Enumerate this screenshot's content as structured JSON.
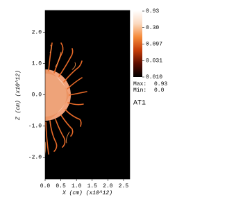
{
  "chart_data": {
    "type": "pseudocolor",
    "x_label": "X (cm) (x10^12)",
    "y_label": "Z (cm) (x10^12)",
    "xlim": [
      0,
      2.7
    ],
    "ylim": [
      -2.7,
      2.7
    ],
    "xticks": [
      {
        "value": 0,
        "label": "0.0"
      },
      0.5,
      {
        "value": 1,
        "label": "1.0"
      },
      1.5,
      {
        "value": 2,
        "label": "2.0"
      },
      2.5
    ],
    "yticks": [
      {
        "value": -2,
        "label": "-2.0"
      },
      {
        "value": -1,
        "label": "-1.0"
      },
      {
        "value": 0,
        "label": "0.0"
      },
      {
        "value": 1,
        "label": "1.0"
      },
      {
        "value": 2,
        "label": "2.0"
      }
    ],
    "colorbar": {
      "scale": "log",
      "lim": [
        0.01,
        0.93
      ],
      "ticks": [
        0.93,
        {
          "value": 0.3,
          "label": "0.30"
        },
        0.097,
        0.031,
        {
          "value": 0.01,
          "label": "0.010"
        }
      ],
      "colors": [
        "#000000",
        "#5a0c00",
        "#c43c08",
        "#f58a3a",
        "#fbd9bf",
        "#ffffff"
      ]
    },
    "max_label": "Max:",
    "max_value": "0.93",
    "min_label": "Min:",
    "min_value": "0.0",
    "variable": "AT1"
  }
}
